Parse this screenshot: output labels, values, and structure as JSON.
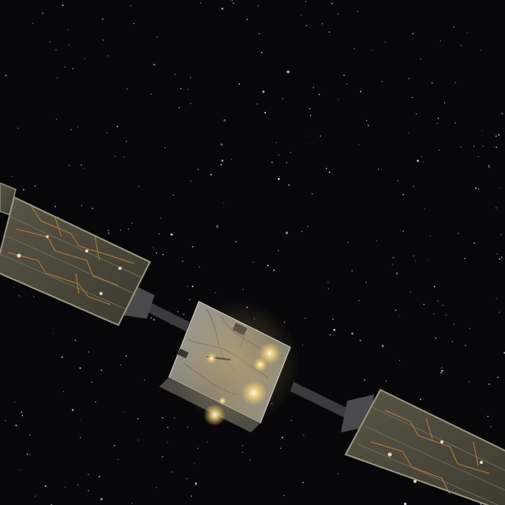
{
  "scene": {
    "subject": "satellite-in-space",
    "colors": {
      "space": "#070709",
      "panel": "#4a4637",
      "panel_edge": "#8f8a78",
      "panel_trace": "#c98a3a",
      "bus": "#8e8a80",
      "boom": "#3a3a3c",
      "glow": "#fff2b0"
    }
  }
}
